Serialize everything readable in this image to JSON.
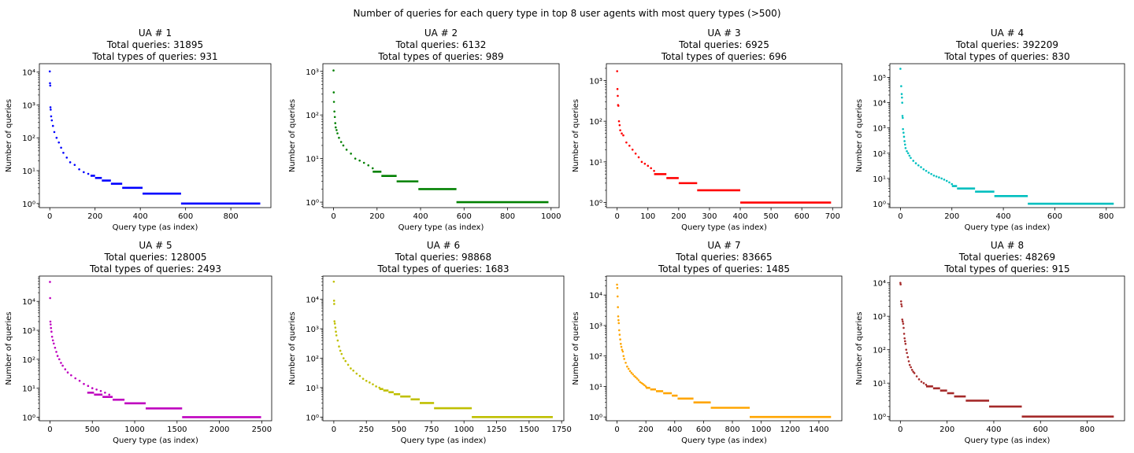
{
  "suptitle": "Number of queries for each query type in top 8 user agents with most query types (>500)",
  "chart_data": [
    {
      "type": "scatter",
      "title_lines": [
        "UA # 1",
        "Total queries: 31895",
        "Total types of queries: 931"
      ],
      "xlabel": "Query type (as index)",
      "ylabel": "Number of queries",
      "yscale": "log",
      "color": "#0000ff",
      "xlim": [
        -46,
        977
      ],
      "ylim": [
        0.75,
        18000
      ],
      "xticks": [
        0,
        200,
        400,
        600,
        800
      ],
      "yticks": [
        1,
        10,
        100,
        1000,
        10000
      ],
      "n": 931,
      "points": [
        [
          0,
          10500
        ],
        [
          1,
          4600
        ],
        [
          2,
          3900
        ],
        [
          3,
          850
        ],
        [
          4,
          720
        ],
        [
          6,
          450
        ],
        [
          9,
          340
        ],
        [
          14,
          230
        ],
        [
          20,
          150
        ],
        [
          30,
          100
        ],
        [
          40,
          72
        ],
        [
          50,
          50
        ],
        [
          60,
          35
        ],
        [
          75,
          25
        ],
        [
          90,
          18
        ],
        [
          110,
          15
        ],
        [
          130,
          11
        ],
        [
          150,
          9
        ],
        [
          170,
          8
        ]
      ],
      "steps": [
        [
          180,
          200,
          7
        ],
        [
          200,
          230,
          6
        ],
        [
          230,
          270,
          5
        ],
        [
          270,
          320,
          4
        ],
        [
          320,
          410,
          3
        ],
        [
          410,
          580,
          2
        ],
        [
          580,
          930,
          1
        ]
      ]
    },
    {
      "type": "scatter",
      "title_lines": [
        "UA # 2",
        "Total queries: 6132",
        "Total types of queries: 989"
      ],
      "xlabel": "Query type (as index)",
      "ylabel": "Number of queries",
      "yscale": "log",
      "color": "#008000",
      "xlim": [
        -49,
        1037
      ],
      "ylim": [
        0.75,
        1500
      ],
      "xticks": [
        0,
        200,
        400,
        600,
        800,
        1000
      ],
      "yticks": [
        1,
        10,
        100,
        1000
      ],
      "n": 989,
      "points": [
        [
          0,
          1050
        ],
        [
          1,
          330
        ],
        [
          2,
          200
        ],
        [
          4,
          120
        ],
        [
          6,
          90
        ],
        [
          8,
          65
        ],
        [
          10,
          52
        ],
        [
          14,
          45
        ],
        [
          18,
          38
        ],
        [
          25,
          30
        ],
        [
          35,
          24
        ],
        [
          45,
          20
        ],
        [
          60,
          16
        ],
        [
          80,
          13
        ],
        [
          100,
          10
        ],
        [
          120,
          9
        ],
        [
          140,
          8
        ],
        [
          160,
          7
        ],
        [
          180,
          6
        ]
      ],
      "steps": [
        [
          180,
          220,
          5
        ],
        [
          220,
          290,
          4
        ],
        [
          290,
          390,
          3
        ],
        [
          390,
          565,
          2
        ],
        [
          565,
          988,
          1
        ]
      ]
    },
    {
      "type": "scatter",
      "title_lines": [
        "UA # 3",
        "Total queries: 6925",
        "Total types of queries: 696"
      ],
      "xlabel": "Query type (as index)",
      "ylabel": "Number of queries",
      "yscale": "log",
      "color": "#ff0000",
      "xlim": [
        -35,
        730
      ],
      "ylim": [
        0.75,
        2600
      ],
      "xticks": [
        0,
        100,
        200,
        300,
        400,
        500,
        600,
        700
      ],
      "yticks": [
        1,
        10,
        100,
        1000
      ],
      "n": 696,
      "points": [
        [
          0,
          1700
        ],
        [
          1,
          620
        ],
        [
          2,
          420
        ],
        [
          3,
          250
        ],
        [
          4,
          240
        ],
        [
          6,
          100
        ],
        [
          8,
          80
        ],
        [
          10,
          60
        ],
        [
          15,
          50
        ],
        [
          20,
          45
        ],
        [
          30,
          30
        ],
        [
          40,
          25
        ],
        [
          50,
          20
        ],
        [
          60,
          16
        ],
        [
          70,
          13
        ],
        [
          80,
          10
        ],
        [
          90,
          9
        ],
        [
          100,
          8
        ],
        [
          110,
          7
        ],
        [
          120,
          6
        ]
      ],
      "steps": [
        [
          120,
          160,
          5
        ],
        [
          160,
          200,
          4
        ],
        [
          200,
          260,
          3
        ],
        [
          260,
          400,
          2
        ],
        [
          400,
          695,
          1
        ]
      ]
    },
    {
      "type": "scatter",
      "title_lines": [
        "UA # 4",
        "Total queries: 392209",
        "Total types of queries: 830"
      ],
      "xlabel": "Query type (as index)",
      "ylabel": "Number of queries",
      "yscale": "log",
      "color": "#00bfbf",
      "xlim": [
        -41,
        871
      ],
      "ylim": [
        0.7,
        350000
      ],
      "xticks": [
        0,
        200,
        400,
        600,
        800
      ],
      "yticks": [
        1,
        10,
        100,
        1000,
        10000,
        100000
      ],
      "n": 830,
      "points": [
        [
          0,
          220000
        ],
        [
          3,
          45000
        ],
        [
          5,
          22000
        ],
        [
          6,
          16000
        ],
        [
          7,
          10000
        ],
        [
          8,
          3000
        ],
        [
          9,
          2500
        ],
        [
          10,
          900
        ],
        [
          12,
          650
        ],
        [
          14,
          450
        ],
        [
          16,
          300
        ],
        [
          18,
          220
        ],
        [
          20,
          160
        ],
        [
          25,
          120
        ],
        [
          30,
          100
        ],
        [
          35,
          80
        ],
        [
          40,
          65
        ],
        [
          50,
          50
        ],
        [
          60,
          40
        ],
        [
          70,
          33
        ],
        [
          80,
          28
        ],
        [
          90,
          23
        ],
        [
          100,
          20
        ],
        [
          110,
          17
        ],
        [
          120,
          15
        ],
        [
          130,
          13
        ],
        [
          140,
          12
        ],
        [
          150,
          11
        ],
        [
          160,
          10
        ],
        [
          170,
          9
        ],
        [
          180,
          8
        ],
        [
          190,
          7
        ],
        [
          200,
          6
        ]
      ],
      "steps": [
        [
          200,
          220,
          5
        ],
        [
          220,
          290,
          4
        ],
        [
          290,
          365,
          3
        ],
        [
          365,
          495,
          2
        ],
        [
          495,
          829,
          1
        ]
      ]
    },
    {
      "type": "scatter",
      "title_lines": [
        "UA # 5",
        "Total queries: 128005",
        "Total types of queries: 2493"
      ],
      "xlabel": "Query type (as index)",
      "ylabel": "Number of queries",
      "yscale": "log",
      "color": "#bf00bf",
      "xlim": [
        -125,
        2617
      ],
      "ylim": [
        0.75,
        75000
      ],
      "xticks": [
        0,
        500,
        1000,
        1500,
        2000,
        2500
      ],
      "yticks": [
        1,
        10,
        100,
        1000,
        10000
      ],
      "n": 2493,
      "points": [
        [
          0,
          47000
        ],
        [
          2,
          13000
        ],
        [
          5,
          2000
        ],
        [
          8,
          1600
        ],
        [
          12,
          1200
        ],
        [
          18,
          900
        ],
        [
          25,
          600
        ],
        [
          35,
          450
        ],
        [
          45,
          350
        ],
        [
          60,
          250
        ],
        [
          75,
          180
        ],
        [
          90,
          130
        ],
        [
          110,
          100
        ],
        [
          130,
          75
        ],
        [
          150,
          60
        ],
        [
          180,
          45
        ],
        [
          210,
          35
        ],
        [
          250,
          28
        ],
        [
          300,
          22
        ],
        [
          350,
          18
        ],
        [
          400,
          14
        ],
        [
          450,
          12
        ],
        [
          500,
          10
        ],
        [
          550,
          9
        ],
        [
          600,
          8
        ],
        [
          650,
          7
        ],
        [
          700,
          6
        ]
      ],
      "steps": [
        [
          440,
          520,
          7
        ],
        [
          520,
          620,
          6
        ],
        [
          620,
          740,
          5
        ],
        [
          740,
          880,
          4
        ],
        [
          880,
          1130,
          3
        ],
        [
          1130,
          1560,
          2
        ],
        [
          1560,
          2492,
          1
        ]
      ]
    },
    {
      "type": "scatter",
      "title_lines": [
        "UA # 6",
        "Total queries: 98868",
        "Total types of queries: 1683"
      ],
      "xlabel": "Query type (as index)",
      "ylabel": "Number of queries",
      "yscale": "log",
      "color": "#bfbf00",
      "xlim": [
        -84,
        1767
      ],
      "ylim": [
        0.75,
        62000
      ],
      "xticks": [
        0,
        250,
        500,
        750,
        1000,
        1250,
        1500,
        1750
      ],
      "yticks": [
        1,
        10,
        100,
        1000,
        10000
      ],
      "n": 1683,
      "points": [
        [
          0,
          40000
        ],
        [
          2,
          9000
        ],
        [
          3,
          7000
        ],
        [
          5,
          1800
        ],
        [
          8,
          1500
        ],
        [
          12,
          1100
        ],
        [
          16,
          800
        ],
        [
          20,
          600
        ],
        [
          30,
          400
        ],
        [
          40,
          250
        ],
        [
          50,
          180
        ],
        [
          60,
          140
        ],
        [
          75,
          100
        ],
        [
          90,
          80
        ],
        [
          110,
          60
        ],
        [
          130,
          45
        ],
        [
          150,
          38
        ],
        [
          175,
          30
        ],
        [
          200,
          25
        ],
        [
          225,
          20
        ],
        [
          250,
          17
        ],
        [
          275,
          15
        ],
        [
          300,
          13
        ],
        [
          325,
          11
        ],
        [
          350,
          10
        ]
      ],
      "steps": [
        [
          350,
          380,
          9
        ],
        [
          380,
          420,
          8
        ],
        [
          420,
          460,
          7
        ],
        [
          460,
          510,
          6
        ],
        [
          510,
          590,
          5
        ],
        [
          590,
          660,
          4
        ],
        [
          660,
          770,
          3
        ],
        [
          770,
          1060,
          2
        ],
        [
          1060,
          1682,
          1
        ]
      ]
    },
    {
      "type": "scatter",
      "title_lines": [
        "UA # 7",
        "Total queries: 83665",
        "Total types of queries: 1485"
      ],
      "xlabel": "Query type (as index)",
      "ylabel": "Number of queries",
      "yscale": "log",
      "color": "#ffa500",
      "xlim": [
        -74,
        1559
      ],
      "ylim": [
        0.75,
        42000
      ],
      "xticks": [
        0,
        200,
        400,
        600,
        800,
        1000,
        1200,
        1400
      ],
      "yticks": [
        1,
        10,
        100,
        1000,
        10000
      ],
      "n": 1485,
      "points": [
        [
          0,
          22000
        ],
        [
          2,
          17000
        ],
        [
          4,
          9000
        ],
        [
          6,
          4000
        ],
        [
          8,
          2000
        ],
        [
          10,
          1500
        ],
        [
          12,
          1200
        ],
        [
          15,
          700
        ],
        [
          18,
          500
        ],
        [
          22,
          350
        ],
        [
          26,
          250
        ],
        [
          30,
          200
        ],
        [
          35,
          160
        ],
        [
          40,
          140
        ],
        [
          45,
          100
        ],
        [
          50,
          80
        ],
        [
          60,
          60
        ],
        [
          70,
          45
        ],
        [
          80,
          38
        ],
        [
          90,
          32
        ],
        [
          100,
          28
        ],
        [
          110,
          25
        ],
        [
          120,
          22
        ],
        [
          130,
          20
        ],
        [
          140,
          18
        ],
        [
          150,
          16
        ],
        [
          160,
          14
        ],
        [
          170,
          13
        ],
        [
          180,
          12
        ],
        [
          190,
          11
        ],
        [
          200,
          10
        ]
      ],
      "steps": [
        [
          200,
          230,
          9
        ],
        [
          230,
          270,
          8
        ],
        [
          270,
          320,
          7
        ],
        [
          320,
          380,
          6
        ],
        [
          380,
          420,
          5
        ],
        [
          420,
          530,
          4
        ],
        [
          530,
          650,
          3
        ],
        [
          650,
          920,
          2
        ],
        [
          920,
          1484,
          1
        ]
      ]
    },
    {
      "type": "scatter",
      "title_lines": [
        "UA # 8",
        "Total queries: 48269",
        "Total types of queries: 915"
      ],
      "xlabel": "Query type (as index)",
      "ylabel": "Number of queries",
      "yscale": "log",
      "color": "#a52a2a",
      "xlim": [
        -45,
        960
      ],
      "ylim": [
        0.75,
        16000
      ],
      "xticks": [
        0,
        200,
        400,
        600,
        800
      ],
      "yticks": [
        1,
        10,
        100,
        1000,
        10000
      ],
      "n": 915,
      "points": [
        [
          0,
          10000
        ],
        [
          1,
          9000
        ],
        [
          3,
          2800
        ],
        [
          4,
          2300
        ],
        [
          6,
          2000
        ],
        [
          8,
          800
        ],
        [
          10,
          700
        ],
        [
          12,
          600
        ],
        [
          14,
          450
        ],
        [
          16,
          300
        ],
        [
          18,
          220
        ],
        [
          20,
          180
        ],
        [
          22,
          150
        ],
        [
          25,
          100
        ],
        [
          28,
          80
        ],
        [
          32,
          60
        ],
        [
          36,
          45
        ],
        [
          40,
          35
        ],
        [
          45,
          30
        ],
        [
          50,
          25
        ],
        [
          55,
          22
        ],
        [
          60,
          20
        ],
        [
          70,
          16
        ],
        [
          80,
          13
        ],
        [
          90,
          11
        ],
        [
          100,
          10
        ],
        [
          110,
          9
        ]
      ],
      "steps": [
        [
          110,
          140,
          8
        ],
        [
          140,
          170,
          7
        ],
        [
          170,
          200,
          6
        ],
        [
          200,
          230,
          5
        ],
        [
          230,
          280,
          4
        ],
        [
          280,
          380,
          3
        ],
        [
          380,
          520,
          2
        ],
        [
          520,
          914,
          1
        ]
      ]
    }
  ]
}
